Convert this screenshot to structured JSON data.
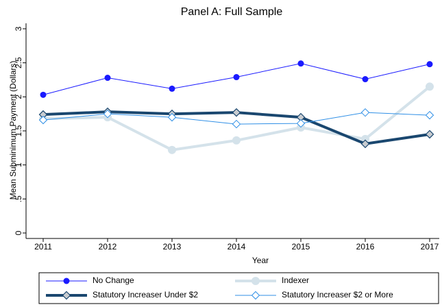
{
  "chart_data": {
    "type": "line",
    "title": "Panel A: Full Sample",
    "xlabel": "Year",
    "ylabel": "Mean Subminimum Payment (Dollars)",
    "x": [
      2011,
      2012,
      2013,
      2014,
      2015,
      2016,
      2017
    ],
    "xlim": [
      2011,
      2017
    ],
    "xticks": [
      2011,
      2012,
      2013,
      2014,
      2015,
      2016,
      2017
    ],
    "ylim": [
      0,
      3
    ],
    "yticks": [
      0,
      {
        "value": 0.5,
        "label": ".5"
      },
      1,
      1.5,
      2,
      2.5,
      3
    ],
    "grid": false,
    "series": [
      {
        "name": "No Change",
        "color": "#1a1aff",
        "marker": "circle",
        "width": 1,
        "values": [
          2.03,
          2.28,
          2.12,
          2.29,
          2.49,
          2.26,
          2.48
        ]
      },
      {
        "name": "Indexer",
        "color": "#d4e2ea",
        "marker": "bigcircle",
        "width": 4,
        "values": [
          1.68,
          1.7,
          1.22,
          1.36,
          1.55,
          1.38,
          2.15
        ]
      },
      {
        "name": "Statutory Increaser Under $2",
        "color": "#1a476f",
        "marker": "diamond",
        "width": 4,
        "values": [
          1.74,
          1.78,
          1.75,
          1.77,
          1.7,
          1.31,
          1.45
        ]
      },
      {
        "name": "Statutory Increaser $2 or More",
        "color": "#2f8fe6",
        "marker": "diamond",
        "width": 1,
        "values": [
          1.66,
          1.75,
          1.7,
          1.6,
          1.61,
          1.77,
          1.73
        ]
      }
    ]
  }
}
